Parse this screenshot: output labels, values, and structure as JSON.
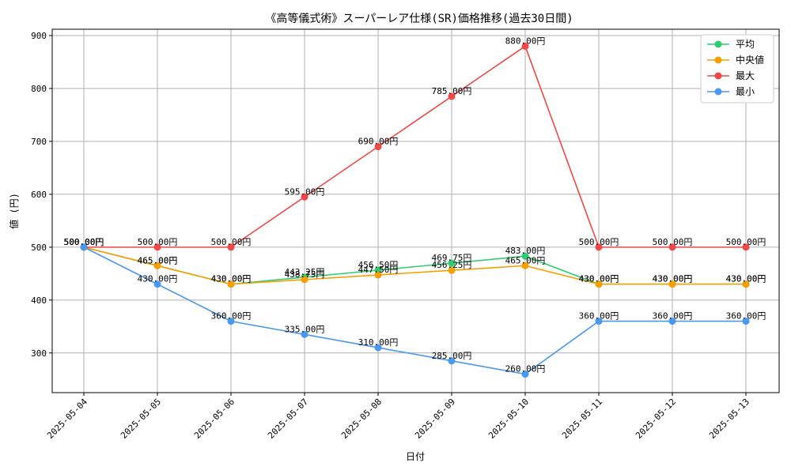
{
  "chart_data": {
    "type": "line",
    "title": "《高等儀式術》スーパーレア仕様(SR)価格推移(過去30日間)",
    "xlabel": "日付",
    "ylabel": "値 (円)",
    "ylim": [
      225,
      912
    ],
    "yticks": [
      300,
      400,
      500,
      600,
      700,
      800,
      900
    ],
    "grid": true,
    "legend_position": "top-right",
    "label_suffix": "円",
    "categories": [
      "2025-05-04",
      "2025-05-05",
      "2025-05-06",
      "2025-05-07",
      "2025-05-08",
      "2025-05-09",
      "2025-05-10",
      "2025-05-11",
      "2025-05-12",
      "2025-05-13"
    ],
    "series": [
      {
        "name": "平均",
        "color": "#2ecc71",
        "values": [
          500.0,
          465.0,
          430.0,
          443.25,
          456.5,
          469.75,
          483.0,
          430.0,
          430.0,
          430.0
        ]
      },
      {
        "name": "中央値",
        "color": "#f5a000",
        "values": [
          500.0,
          465.0,
          430.0,
          438.75,
          447.5,
          456.25,
          465.0,
          430.0,
          430.0,
          430.0
        ]
      },
      {
        "name": "最大",
        "color": "#f04848",
        "values": [
          500.0,
          500.0,
          500.0,
          595.0,
          690.0,
          785.0,
          880.0,
          500.0,
          500.0,
          500.0
        ]
      },
      {
        "name": "最小",
        "color": "#4a98f0",
        "values": [
          500.0,
          430.0,
          360.0,
          335.0,
          310.0,
          285.0,
          260.0,
          360.0,
          360.0,
          360.0
        ]
      }
    ]
  }
}
